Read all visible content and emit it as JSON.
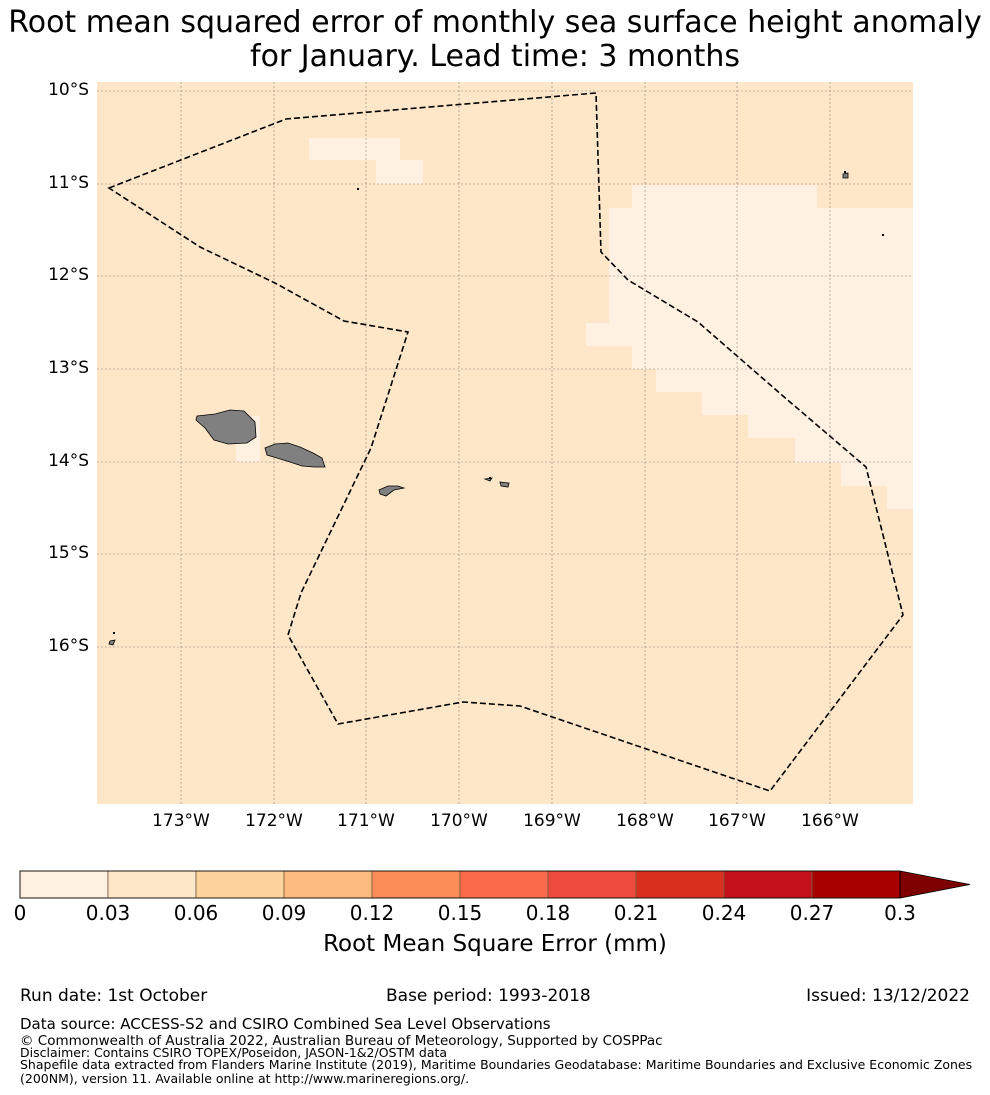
{
  "title": {
    "line1": "Root mean squared error of monthly sea surface height anomaly",
    "line2": "for January. Lead time: 3 months"
  },
  "map": {
    "lat_ticks": [
      "10°S",
      "11°S",
      "12°S",
      "13°S",
      "14°S",
      "15°S",
      "16°S"
    ],
    "lon_ticks": [
      "173°W",
      "172°W",
      "171°W",
      "170°W",
      "169°W",
      "168°W",
      "167°W",
      "166°W"
    ],
    "colors": {
      "background_field": "#fee6c8",
      "low_field": "#fff1e1",
      "land": "#808080",
      "eez_boundary": "#000000"
    }
  },
  "colorbar": {
    "ticks": [
      "0",
      "0.03",
      "0.06",
      "0.09",
      "0.12",
      "0.15",
      "0.18",
      "0.21",
      "0.24",
      "0.27",
      "0.3"
    ],
    "colors": [
      "#fff1e1",
      "#fee6c8",
      "#fdd49e",
      "#fdba7f",
      "#fc8d59",
      "#fb6b4b",
      "#ef4b3c",
      "#d7301f",
      "#c3101a",
      "#a80000",
      "#7f0000"
    ],
    "label": "Root Mean Square Error (mm)",
    "extend": "max"
  },
  "footer": {
    "run_date": "Run date: 1st October",
    "base_period": "Base period: 1993-2018",
    "issued": "Issued: 13/12/2022",
    "data_source": "Data source: ACCESS-S2 and CSIRO Combined Sea Level Observations",
    "copyright": "© Commonwealth of Australia 2022, Australian Bureau of Meteorology, Supported by COSPPac",
    "disclaimer": "Disclaimer: Contains CSIRO TOPEX/Poseidon, JASON-1&2/OSTM data",
    "shapefile1": "Shapefile data extracted from Flanders Marine Institute (2019), Maritime Boundaries Geodatabase: Maritime Boundaries and Exclusive Economic Zones",
    "shapefile2": "(200NM), version 11. Available online at http://www.marineregions.org/."
  }
}
